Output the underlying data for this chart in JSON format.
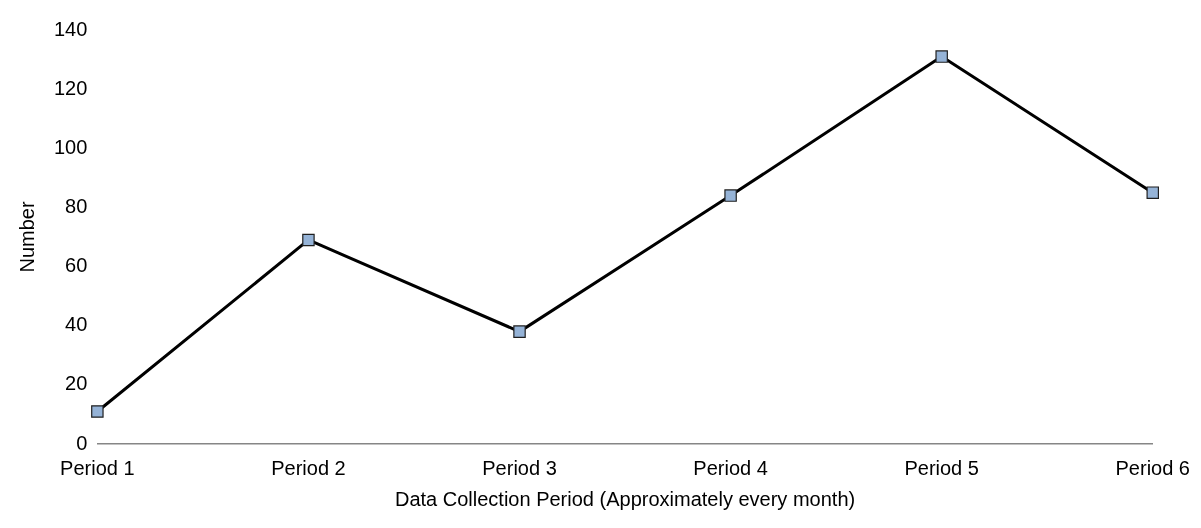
{
  "chart_data": {
    "type": "line",
    "xlabel": "Data Collection Period (Approximately every month)",
    "ylabel": "Number",
    "categories": [
      "Period 1",
      "Period 2",
      "Period 3",
      "Period 4",
      "Period 5",
      "Period 6"
    ],
    "series": [
      {
        "color": "#000000",
        "colors": [
          "#95b3d7",
          "#95b3d7",
          "#95b3d7",
          "#95b3d7",
          "#95b3d7",
          "#95b3d7"
        ],
        "values": [
          11,
          69,
          38,
          84,
          131,
          85
        ]
      }
    ],
    "ylim": [
      0,
      140
    ],
    "yticks": [
      0,
      20,
      40,
      60,
      80,
      100,
      120,
      140
    ],
    "grid": false,
    "legend": false,
    "marker": "square",
    "line_style": "solid"
  }
}
